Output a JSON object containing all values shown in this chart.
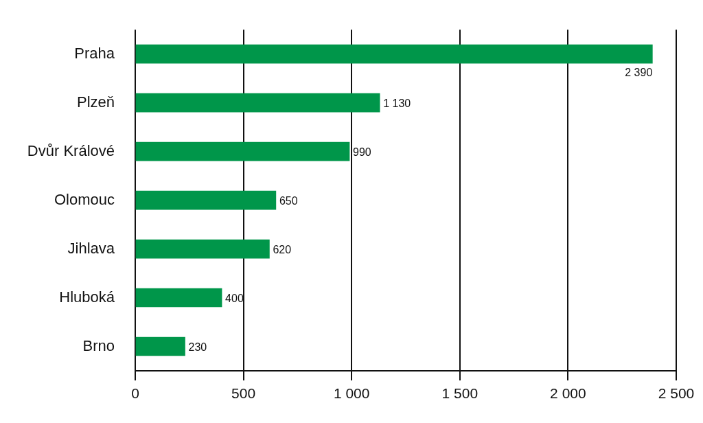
{
  "chart_data": {
    "type": "bar",
    "orientation": "horizontal",
    "categories": [
      "Praha",
      "Plzeň",
      "Dvůr Králové",
      "Olomouc",
      "Jihlava",
      "Hluboká",
      "Brno"
    ],
    "values": [
      2390,
      1130,
      990,
      650,
      620,
      400,
      230
    ],
    "value_labels": [
      "2 390",
      "1 130",
      "990",
      "650",
      "620",
      "400",
      "230"
    ],
    "color": "#00964a",
    "xlim": [
      0,
      2500
    ],
    "xticks": [
      0,
      500,
      {
        "value": 1000,
        "label": "1 000"
      },
      {
        "value": 1500,
        "label": "1 500"
      },
      {
        "value": 2000,
        "label": "2 000"
      },
      {
        "value": 2500,
        "label": "2 500"
      }
    ],
    "grid": "x",
    "legend": false
  }
}
